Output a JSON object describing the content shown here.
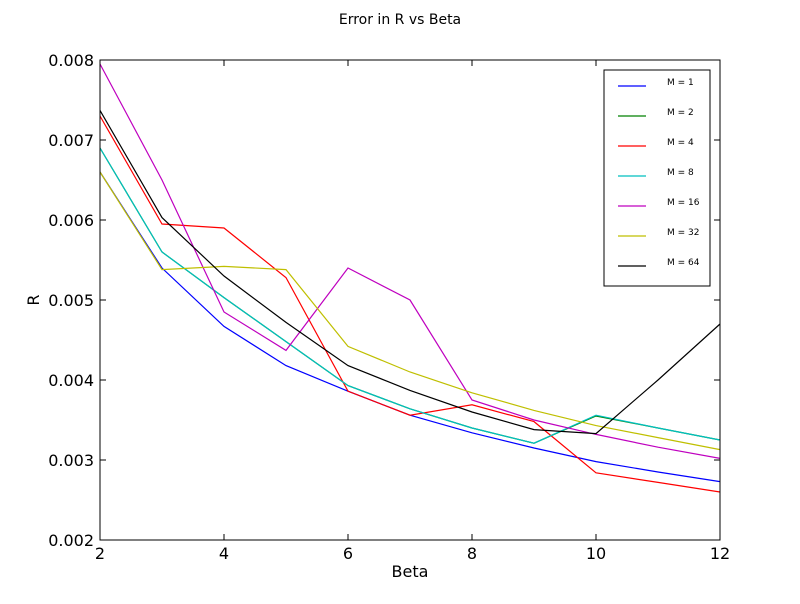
{
  "chart_data": {
    "type": "line",
    "title": "Error in R vs Beta",
    "xlabel": "Beta",
    "ylabel": "R",
    "xlim": [
      2,
      12
    ],
    "ylim": [
      0.002,
      0.008
    ],
    "xticks": [
      2,
      4,
      6,
      8,
      10,
      12
    ],
    "xtick_labels": [
      "2",
      "4",
      "6",
      "8",
      "10",
      "12"
    ],
    "yticks": [
      0.002,
      0.003,
      0.004,
      0.005,
      0.006,
      0.007,
      0.008
    ],
    "ytick_labels": [
      "0.002",
      "0.003",
      "0.004",
      "0.005",
      "0.006",
      "0.007",
      "0.008"
    ],
    "grid": false,
    "legend_position": "top-right",
    "x": [
      2,
      3,
      4,
      5,
      6,
      7,
      8,
      9,
      10,
      11,
      12
    ],
    "series": [
      {
        "name": "M = 1",
        "color": "#0000ff",
        "values": [
          0.0066,
          0.0054,
          0.00467,
          0.00418,
          0.00386,
          0.00356,
          0.00334,
          0.00315,
          0.00298,
          0.00285,
          0.00273
        ]
      },
      {
        "name": "M = 2",
        "color": "#008000",
        "values": [
          0.0069,
          0.0056,
          0.00503,
          0.00448,
          0.00393,
          0.00364,
          0.0034,
          0.00321,
          0.00355,
          0.0034,
          0.00325
        ]
      },
      {
        "name": "M = 4",
        "color": "#ff0000",
        "values": [
          0.0073,
          0.00595,
          0.0059,
          0.00528,
          0.00386,
          0.00356,
          0.00369,
          0.00348,
          0.00284,
          0.00272,
          0.0026
        ]
      },
      {
        "name": "M = 8",
        "color": "#00bfbf",
        "values": [
          0.0069,
          0.0056,
          0.00503,
          0.00448,
          0.00393,
          0.00364,
          0.0034,
          0.00321,
          0.00356,
          0.0034,
          0.00325
        ]
      },
      {
        "name": "M = 16",
        "color": "#bf00bf",
        "values": [
          0.00795,
          0.0065,
          0.00485,
          0.00437,
          0.0054,
          0.005,
          0.00375,
          0.0035,
          0.00332,
          0.00316,
          0.00302
        ]
      },
      {
        "name": "M = 32",
        "color": "#bfbf00",
        "values": [
          0.0066,
          0.00538,
          0.00542,
          0.00538,
          0.00442,
          0.0041,
          0.00384,
          0.00362,
          0.00343,
          0.00328,
          0.00313
        ]
      },
      {
        "name": "M = 64",
        "color": "#000000",
        "values": [
          0.00737,
          0.00603,
          0.0053,
          0.00472,
          0.00418,
          0.00387,
          0.0036,
          0.00338,
          0.00333,
          0.004,
          0.0047
        ]
      }
    ]
  }
}
